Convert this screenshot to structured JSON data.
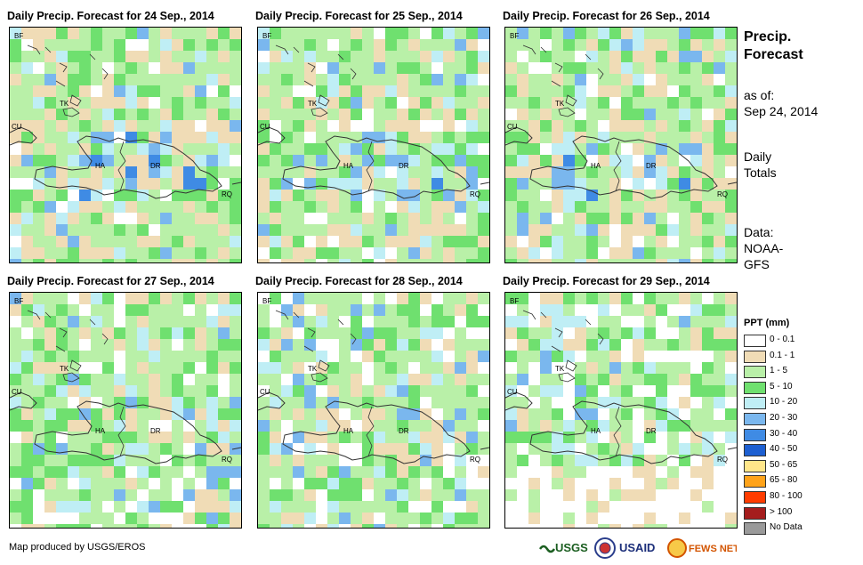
{
  "panels": [
    {
      "title": "Daily Precip. Forecast for 24 Sep., 2014",
      "seed": 11,
      "wet": 1.0
    },
    {
      "title": "Daily Precip. Forecast for 25 Sep., 2014",
      "seed": 23,
      "wet": 0.8
    },
    {
      "title": "Daily Precip. Forecast for 26 Sep., 2014",
      "seed": 37,
      "wet": 0.85
    },
    {
      "title": "Daily Precip. Forecast for 27 Sep., 2014",
      "seed": 41,
      "wet": 0.55
    },
    {
      "title": "Daily Precip. Forecast for 28 Sep., 2014",
      "seed": 53,
      "wet": 0.5
    },
    {
      "title": "Daily Precip. Forecast for 29 Sep., 2014",
      "seed": 67,
      "wet": 0.3
    }
  ],
  "place_labels": [
    "BF",
    "TK",
    "CU",
    "HA",
    "DR",
    "RQ"
  ],
  "side": {
    "title_line1": "Precip.",
    "title_line2": "Forecast",
    "as_of_line1": "as of:",
    "as_of_line2": "Sep 24, 2014",
    "totals_line1": "Daily",
    "totals_line2": "Totals",
    "data_line1": "Data:",
    "data_line2": "NOAA-",
    "data_line3": "GFS"
  },
  "legend": {
    "title": "PPT (mm)",
    "items": [
      {
        "label": "0 - 0.1",
        "color": "#ffffff"
      },
      {
        "label": "0.1 - 1",
        "color": "#f0dcb6"
      },
      {
        "label": "1 - 5",
        "color": "#b9f0a8"
      },
      {
        "label": "5 - 10",
        "color": "#6fe06f"
      },
      {
        "label": "10 - 20",
        "color": "#bfeef5"
      },
      {
        "label": "20 - 30",
        "color": "#7ab7ee"
      },
      {
        "label": "30 - 40",
        "color": "#3f8be4"
      },
      {
        "label": "40 - 50",
        "color": "#1d5fd1"
      },
      {
        "label": "50 - 65",
        "color": "#ffe68a"
      },
      {
        "label": "65 - 80",
        "color": "#ffa31a"
      },
      {
        "label": "80 - 100",
        "color": "#ff3c00"
      },
      {
        "label": "> 100",
        "color": "#a51d1d"
      },
      {
        "label": "No Data",
        "color": "#9a9a9a"
      }
    ]
  },
  "credit": "Map produced by USGS/EROS",
  "logos": [
    "USGS",
    "USAID",
    "FEWS NET"
  ]
}
